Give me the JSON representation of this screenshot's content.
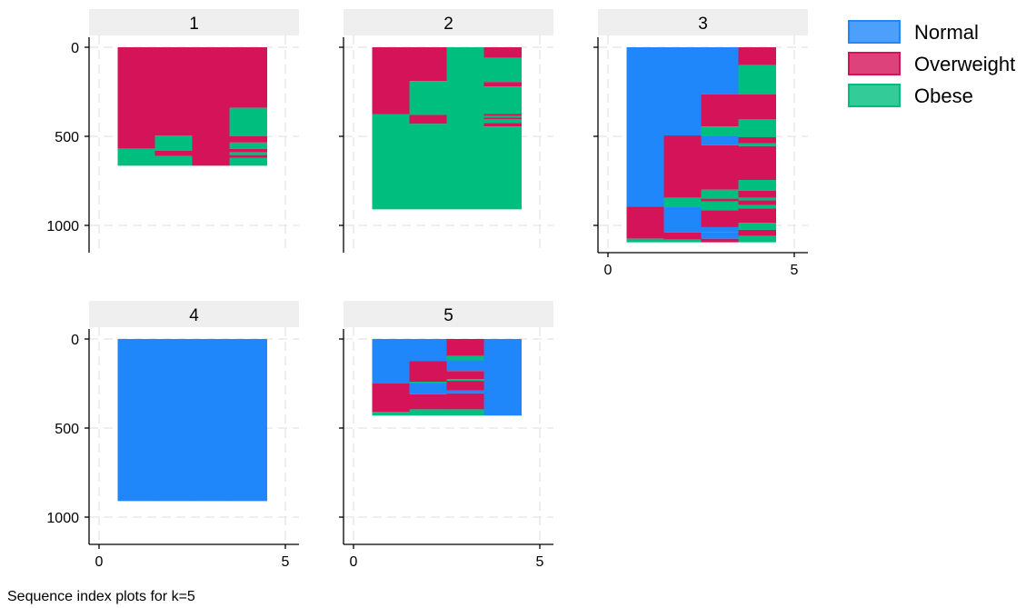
{
  "chart_data": {
    "type": "sequence-index",
    "xlim": [
      0,
      5
    ],
    "ylim": [
      0,
      1150
    ],
    "xticks": [
      0,
      5
    ],
    "yticks": [
      0,
      500,
      1000
    ],
    "grid": true,
    "legend_position": "right",
    "states": [
      {
        "name": "Normal",
        "color": "#1f87fa"
      },
      {
        "name": "Overweight",
        "color": "#d41359"
      },
      {
        "name": "Obese",
        "color": "#00be7d"
      }
    ],
    "panels": [
      {
        "title": "1",
        "n": 665,
        "columns": [
          [
            {
              "s": 1,
              "from": 0,
              "to": 570
            },
            {
              "s": 2,
              "from": 570,
              "to": 665
            }
          ],
          [
            {
              "s": 1,
              "from": 0,
              "to": 495
            },
            {
              "s": 2,
              "from": 495,
              "to": 580
            },
            {
              "s": 1,
              "from": 580,
              "to": 610
            },
            {
              "s": 2,
              "from": 610,
              "to": 665
            }
          ],
          [
            {
              "s": 1,
              "from": 0,
              "to": 665
            }
          ],
          [
            {
              "s": 1,
              "from": 0,
              "to": 340
            },
            {
              "s": 2,
              "from": 340,
              "to": 500
            },
            {
              "s": 1,
              "from": 500,
              "to": 535
            },
            {
              "s": 2,
              "from": 535,
              "to": 570
            },
            {
              "s": 1,
              "from": 570,
              "to": 590
            },
            {
              "s": 2,
              "from": 590,
              "to": 605
            },
            {
              "s": 1,
              "from": 605,
              "to": 620
            },
            {
              "s": 2,
              "from": 620,
              "to": 665
            }
          ]
        ]
      },
      {
        "title": "2",
        "n": 910,
        "columns": [
          [
            {
              "s": 1,
              "from": 0,
              "to": 375
            },
            {
              "s": 2,
              "from": 375,
              "to": 910
            }
          ],
          [
            {
              "s": 1,
              "from": 0,
              "to": 190
            },
            {
              "s": 2,
              "from": 190,
              "to": 380
            },
            {
              "s": 1,
              "from": 380,
              "to": 430
            },
            {
              "s": 2,
              "from": 430,
              "to": 910
            }
          ],
          [
            {
              "s": 2,
              "from": 0,
              "to": 910
            }
          ],
          [
            {
              "s": 1,
              "from": 0,
              "to": 60
            },
            {
              "s": 2,
              "from": 60,
              "to": 195
            },
            {
              "s": 1,
              "from": 195,
              "to": 220
            },
            {
              "s": 2,
              "from": 220,
              "to": 375
            },
            {
              "s": 1,
              "from": 375,
              "to": 385
            },
            {
              "s": 2,
              "from": 385,
              "to": 395
            },
            {
              "s": 1,
              "from": 395,
              "to": 405
            },
            {
              "s": 2,
              "from": 405,
              "to": 425
            },
            {
              "s": 1,
              "from": 425,
              "to": 445
            },
            {
              "s": 2,
              "from": 445,
              "to": 910
            }
          ]
        ]
      },
      {
        "title": "3",
        "n": 1095,
        "columns": [
          [
            {
              "s": 0,
              "from": 0,
              "to": 895
            },
            {
              "s": 1,
              "from": 895,
              "to": 1075
            },
            {
              "s": 2,
              "from": 1075,
              "to": 1095
            }
          ],
          [
            {
              "s": 0,
              "from": 0,
              "to": 495
            },
            {
              "s": 1,
              "from": 495,
              "to": 845
            },
            {
              "s": 2,
              "from": 845,
              "to": 895
            },
            {
              "s": 0,
              "from": 895,
              "to": 1040
            },
            {
              "s": 1,
              "from": 1040,
              "to": 1080
            },
            {
              "s": 2,
              "from": 1080,
              "to": 1095
            }
          ],
          [
            {
              "s": 0,
              "from": 0,
              "to": 265
            },
            {
              "s": 1,
              "from": 265,
              "to": 445
            },
            {
              "s": 2,
              "from": 445,
              "to": 500
            },
            {
              "s": 0,
              "from": 500,
              "to": 550
            },
            {
              "s": 1,
              "from": 550,
              "to": 800
            },
            {
              "s": 2,
              "from": 800,
              "to": 850
            },
            {
              "s": 1,
              "from": 850,
              "to": 865
            },
            {
              "s": 2,
              "from": 865,
              "to": 915
            },
            {
              "s": 1,
              "from": 915,
              "to": 1010
            },
            {
              "s": 0,
              "from": 1010,
              "to": 1040
            },
            {
              "s": 0,
              "from": 1040,
              "to": 1075
            },
            {
              "s": 1,
              "from": 1075,
              "to": 1095
            }
          ],
          [
            {
              "s": 1,
              "from": 0,
              "to": 100
            },
            {
              "s": 2,
              "from": 100,
              "to": 265
            },
            {
              "s": 1,
              "from": 265,
              "to": 405
            },
            {
              "s": 2,
              "from": 405,
              "to": 505
            },
            {
              "s": 1,
              "from": 505,
              "to": 540
            },
            {
              "s": 2,
              "from": 540,
              "to": 555
            },
            {
              "s": 1,
              "from": 555,
              "to": 745
            },
            {
              "s": 2,
              "from": 745,
              "to": 805
            },
            {
              "s": 1,
              "from": 805,
              "to": 845
            },
            {
              "s": 2,
              "from": 845,
              "to": 860
            },
            {
              "s": 1,
              "from": 860,
              "to": 885
            },
            {
              "s": 2,
              "from": 885,
              "to": 905
            },
            {
              "s": 1,
              "from": 905,
              "to": 985
            },
            {
              "s": 2,
              "from": 985,
              "to": 1025
            },
            {
              "s": 1,
              "from": 1025,
              "to": 1060
            },
            {
              "s": 2,
              "from": 1060,
              "to": 1095
            }
          ]
        ]
      },
      {
        "title": "4",
        "n": 910,
        "columns": [
          [
            {
              "s": 0,
              "from": 0,
              "to": 910
            }
          ],
          [
            {
              "s": 0,
              "from": 0,
              "to": 910
            }
          ],
          [
            {
              "s": 0,
              "from": 0,
              "to": 910
            }
          ],
          [
            {
              "s": 0,
              "from": 0,
              "to": 910
            }
          ]
        ]
      },
      {
        "title": "5",
        "n": 430,
        "columns": [
          [
            {
              "s": 0,
              "from": 0,
              "to": 250
            },
            {
              "s": 1,
              "from": 250,
              "to": 410
            },
            {
              "s": 2,
              "from": 410,
              "to": 430
            }
          ],
          [
            {
              "s": 0,
              "from": 0,
              "to": 125
            },
            {
              "s": 1,
              "from": 125,
              "to": 240
            },
            {
              "s": 2,
              "from": 240,
              "to": 250
            },
            {
              "s": 0,
              "from": 250,
              "to": 310
            },
            {
              "s": 1,
              "from": 310,
              "to": 395
            },
            {
              "s": 2,
              "from": 395,
              "to": 430
            }
          ],
          [
            {
              "s": 1,
              "from": 0,
              "to": 95
            },
            {
              "s": 2,
              "from": 95,
              "to": 120
            },
            {
              "s": 0,
              "from": 120,
              "to": 180
            },
            {
              "s": 1,
              "from": 180,
              "to": 225
            },
            {
              "s": 2,
              "from": 225,
              "to": 235
            },
            {
              "s": 1,
              "from": 235,
              "to": 290
            },
            {
              "s": 0,
              "from": 290,
              "to": 305
            },
            {
              "s": 1,
              "from": 305,
              "to": 395
            },
            {
              "s": 2,
              "from": 395,
              "to": 430
            }
          ],
          [
            {
              "s": 0,
              "from": 0,
              "to": 430
            }
          ]
        ]
      }
    ]
  },
  "footer": {
    "note": "Sequence index plots for k=5"
  }
}
